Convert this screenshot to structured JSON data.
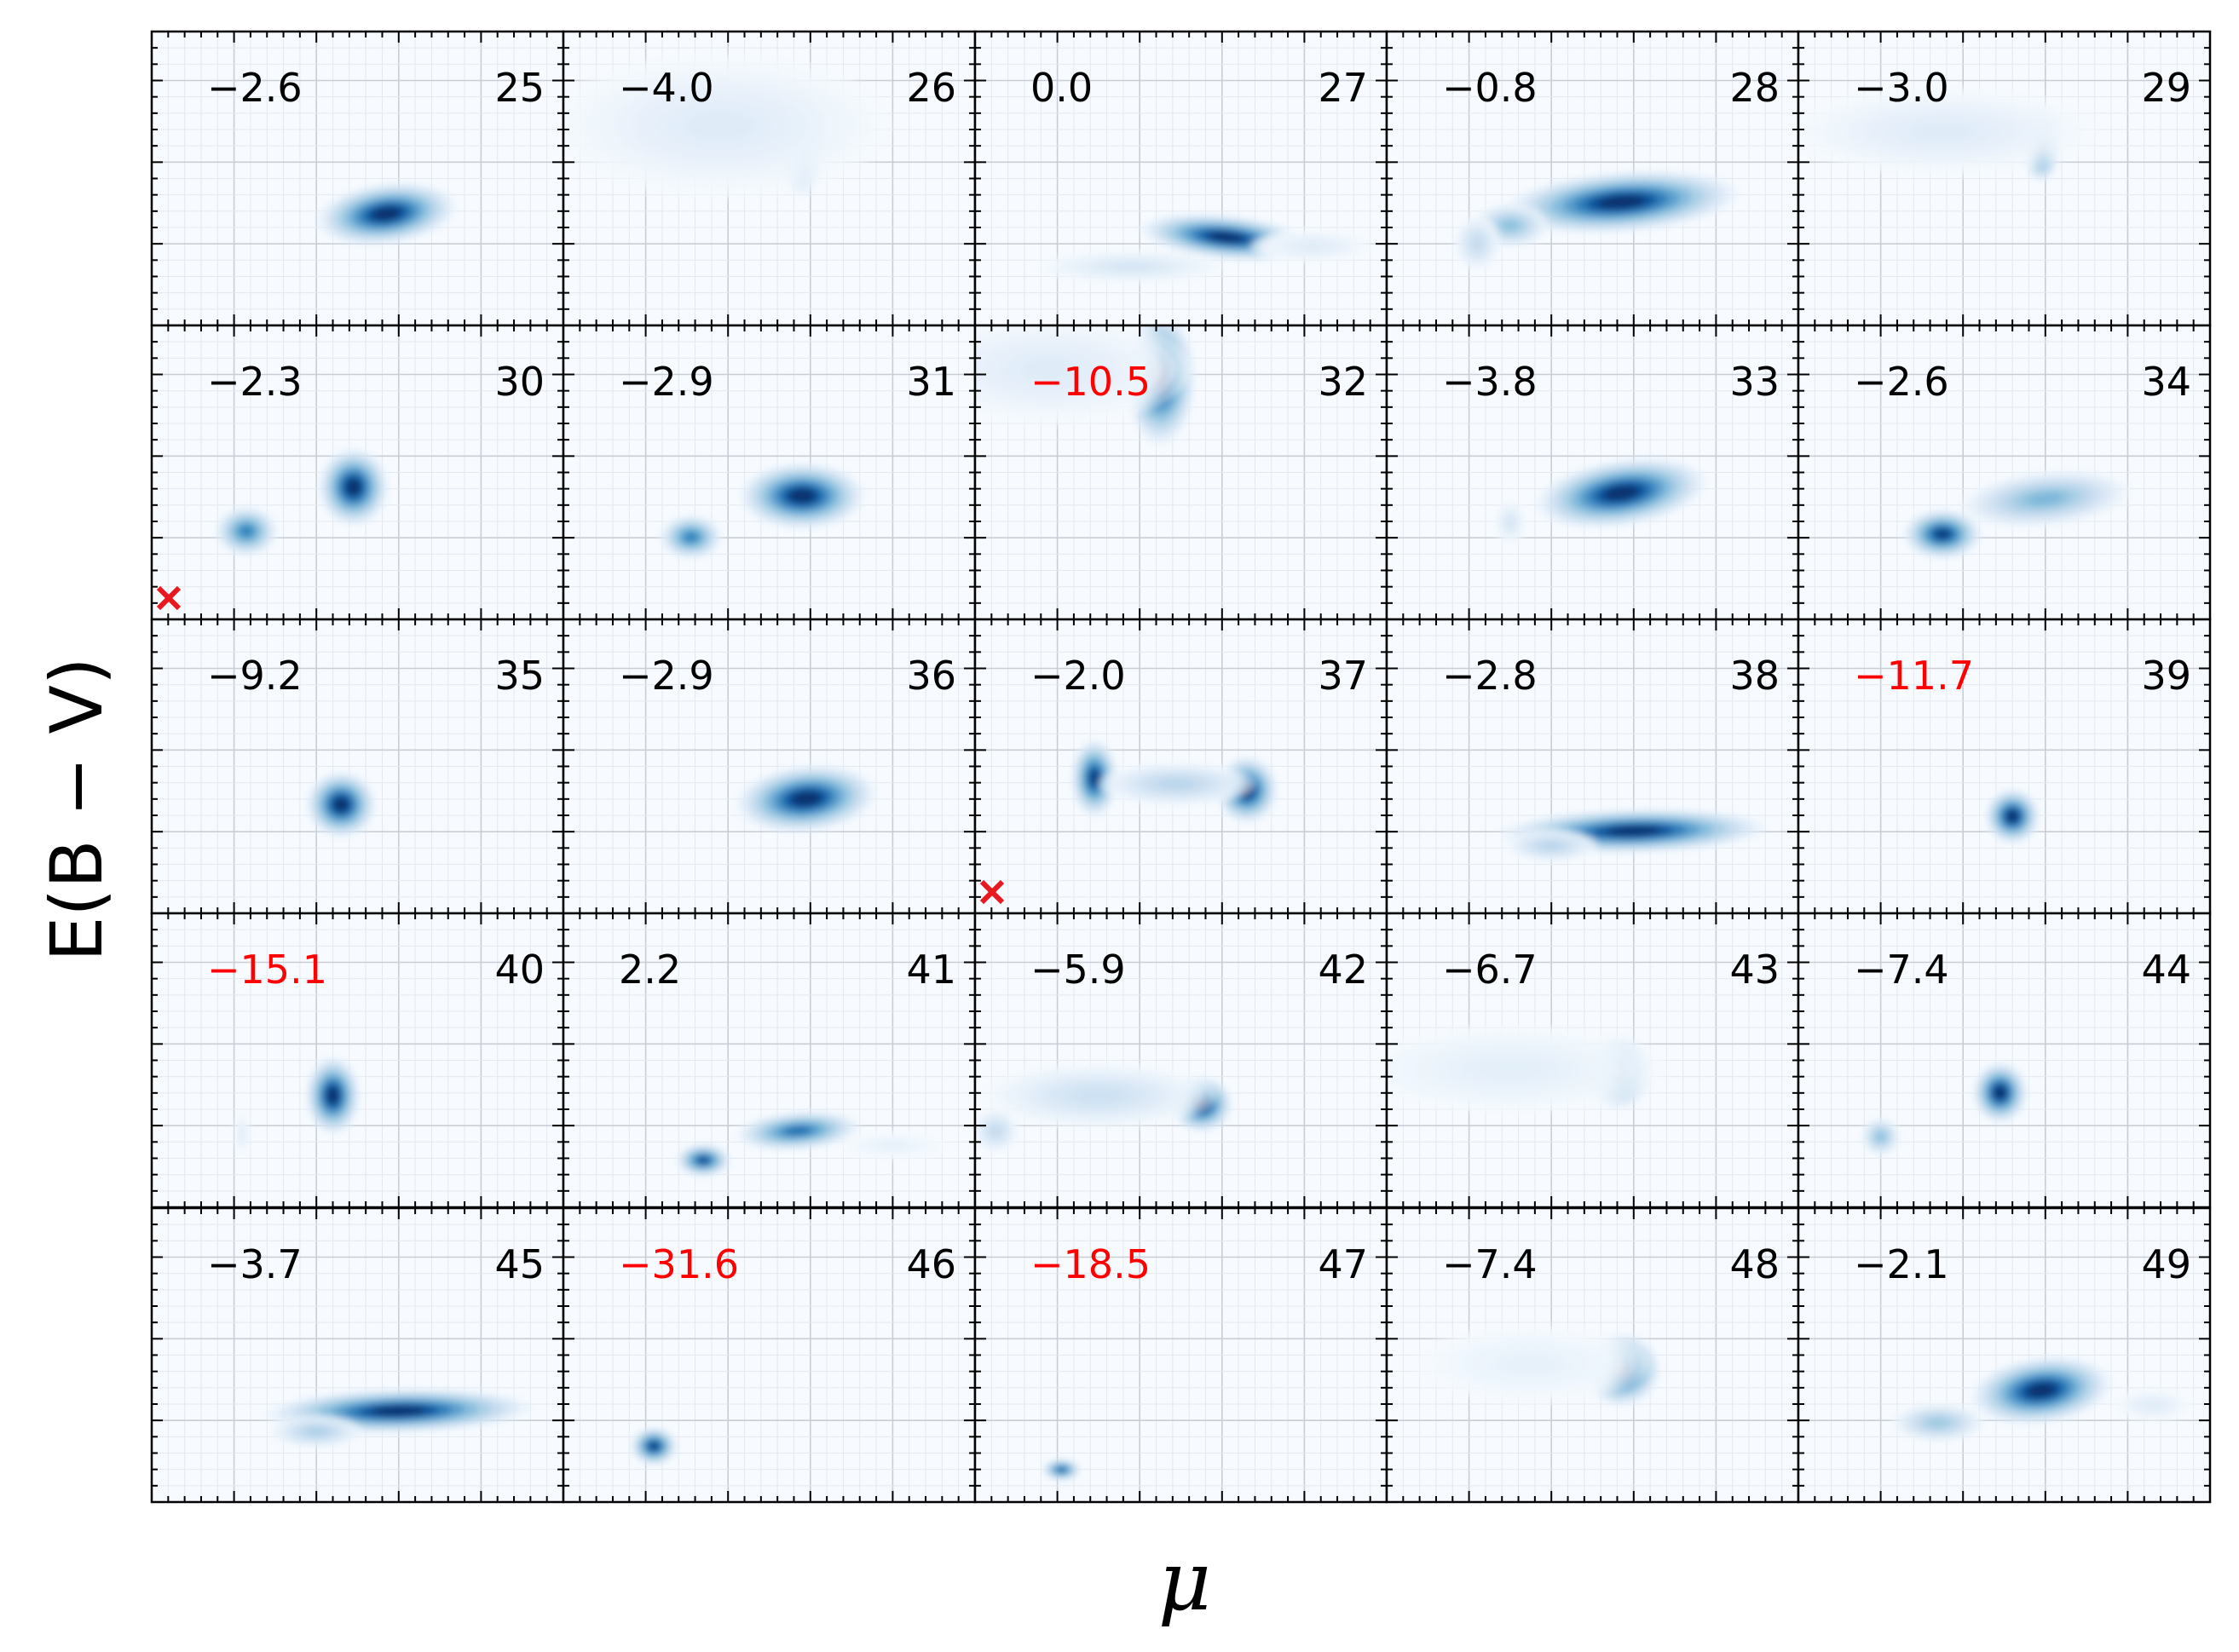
{
  "figure": {
    "xlabel": "μ",
    "ylabel": "E(B − V)",
    "grid": true,
    "colormap": "Blues",
    "marker_color": "#e8181e",
    "warning_color": "#ff0000",
    "text_color": "#000000"
  },
  "chart_data": {
    "type": "heatmap",
    "xlabel": "μ",
    "ylabel": "E(B − V)",
    "grid": true,
    "panels": [
      {
        "id": "25",
        "value": "−2.6",
        "warn": false,
        "marker": false,
        "blobs": [
          {
            "x": 0.57,
            "y": 0.38,
            "sx": 0.09,
            "sy": 0.055,
            "w": 1,
            "tilt": -0.25
          }
        ]
      },
      {
        "id": "26",
        "value": "−4.0",
        "warn": false,
        "marker": false,
        "blobs": [
          {
            "x": 0.58,
            "y": 0.63,
            "sx": 0.03,
            "sy": 0.1,
            "w": 1
          },
          {
            "x": 0.38,
            "y": 0.68,
            "sx": 0.22,
            "sy": 0.13,
            "w": 0.15
          }
        ]
      },
      {
        "id": "27",
        "value": "0.0",
        "warn": false,
        "marker": false,
        "blobs": [
          {
            "x": 0.61,
            "y": 0.3,
            "sx": 0.11,
            "sy": 0.04,
            "w": 1,
            "tilt": 0.2
          },
          {
            "x": 0.38,
            "y": 0.2,
            "sx": 0.12,
            "sy": 0.03,
            "w": 0.2
          },
          {
            "x": 0.82,
            "y": 0.27,
            "sx": 0.08,
            "sy": 0.03,
            "w": 0.15
          }
        ]
      },
      {
        "id": "28",
        "value": "−0.8",
        "warn": false,
        "marker": false,
        "blobs": [
          {
            "x": 0.57,
            "y": 0.42,
            "sx": 0.15,
            "sy": 0.055,
            "w": 1,
            "tilt": -0.15
          },
          {
            "x": 0.3,
            "y": 0.34,
            "sx": 0.05,
            "sy": 0.04,
            "w": 0.5
          },
          {
            "x": 0.22,
            "y": 0.28,
            "sx": 0.03,
            "sy": 0.05,
            "w": 0.3
          }
        ]
      },
      {
        "id": "29",
        "value": "−3.0",
        "warn": false,
        "marker": false,
        "blobs": [
          {
            "x": 0.59,
            "y": 0.62,
            "sx": 0.025,
            "sy": 0.07,
            "w": 1
          },
          {
            "x": 0.35,
            "y": 0.66,
            "sx": 0.2,
            "sy": 0.08,
            "w": 0.15
          }
        ]
      },
      {
        "id": "30",
        "value": "−2.3",
        "warn": false,
        "marker": true,
        "blobs": [
          {
            "x": 0.49,
            "y": 0.45,
            "sx": 0.045,
            "sy": 0.07,
            "w": 1
          },
          {
            "x": 0.23,
            "y": 0.3,
            "sx": 0.04,
            "sy": 0.045,
            "w": 0.75
          }
        ]
      },
      {
        "id": "31",
        "value": "−2.9",
        "warn": false,
        "marker": false,
        "blobs": [
          {
            "x": 0.58,
            "y": 0.42,
            "sx": 0.08,
            "sy": 0.06,
            "w": 1
          },
          {
            "x": 0.31,
            "y": 0.28,
            "sx": 0.04,
            "sy": 0.04,
            "w": 0.75
          }
        ]
      },
      {
        "id": "32",
        "value": "−10.5",
        "warn": true,
        "marker": false,
        "blobs": [
          {
            "x": 0.45,
            "y": 0.82,
            "sx": 0.045,
            "sy": 0.12,
            "w": 1
          },
          {
            "x": 0.18,
            "y": 0.85,
            "sx": 0.18,
            "sy": 0.1,
            "w": 0.15
          }
        ]
      },
      {
        "id": "33",
        "value": "−3.8",
        "warn": false,
        "marker": false,
        "blobs": [
          {
            "x": 0.57,
            "y": 0.43,
            "sx": 0.11,
            "sy": 0.06,
            "w": 1,
            "tilt": -0.3
          },
          {
            "x": 0.3,
            "y": 0.33,
            "sx": 0.02,
            "sy": 0.04,
            "w": 0.2
          }
        ]
      },
      {
        "id": "34",
        "value": "−2.6",
        "warn": false,
        "marker": false,
        "blobs": [
          {
            "x": 0.35,
            "y": 0.29,
            "sx": 0.05,
            "sy": 0.045,
            "w": 0.95
          },
          {
            "x": 0.6,
            "y": 0.41,
            "sx": 0.11,
            "sy": 0.05,
            "w": 0.55,
            "tilt": -0.2
          }
        ]
      },
      {
        "id": "35",
        "value": "−9.2",
        "warn": false,
        "marker": false,
        "blobs": [
          {
            "x": 0.46,
            "y": 0.37,
            "sx": 0.045,
            "sy": 0.06,
            "w": 1
          }
        ]
      },
      {
        "id": "36",
        "value": "−2.9",
        "warn": false,
        "marker": false,
        "blobs": [
          {
            "x": 0.59,
            "y": 0.39,
            "sx": 0.09,
            "sy": 0.06,
            "w": 1,
            "tilt": -0.2
          }
        ]
      },
      {
        "id": "37",
        "value": "−2.0",
        "warn": false,
        "marker": true,
        "blobs": [
          {
            "x": 0.29,
            "y": 0.46,
            "sx": 0.03,
            "sy": 0.07,
            "w": 0.95
          },
          {
            "x": 0.66,
            "y": 0.42,
            "sx": 0.04,
            "sy": 0.06,
            "w": 1
          },
          {
            "x": 0.49,
            "y": 0.44,
            "sx": 0.1,
            "sy": 0.04,
            "w": 0.35
          }
        ]
      },
      {
        "id": "38",
        "value": "−2.8",
        "warn": false,
        "marker": false,
        "blobs": [
          {
            "x": 0.6,
            "y": 0.28,
            "sx": 0.17,
            "sy": 0.04,
            "w": 1,
            "tilt": -0.05
          },
          {
            "x": 0.4,
            "y": 0.23,
            "sx": 0.06,
            "sy": 0.03,
            "w": 0.35
          }
        ]
      },
      {
        "id": "39",
        "value": "−11.7",
        "warn": true,
        "marker": false,
        "blobs": [
          {
            "x": 0.52,
            "y": 0.33,
            "sx": 0.035,
            "sy": 0.05,
            "w": 1
          }
        ]
      },
      {
        "id": "40",
        "value": "−15.1",
        "warn": true,
        "marker": false,
        "blobs": [
          {
            "x": 0.44,
            "y": 0.38,
            "sx": 0.035,
            "sy": 0.07,
            "w": 1
          },
          {
            "x": 0.22,
            "y": 0.25,
            "sx": 0.01,
            "sy": 0.04,
            "w": 0.15
          }
        ]
      },
      {
        "id": "41",
        "value": "2.2",
        "warn": false,
        "marker": false,
        "blobs": [
          {
            "x": 0.57,
            "y": 0.26,
            "sx": 0.08,
            "sy": 0.035,
            "w": 0.8,
            "tilt": -0.15
          },
          {
            "x": 0.34,
            "y": 0.16,
            "sx": 0.035,
            "sy": 0.03,
            "w": 0.9
          },
          {
            "x": 0.8,
            "y": 0.21,
            "sx": 0.07,
            "sy": 0.025,
            "w": 0.1
          }
        ]
      },
      {
        "id": "42",
        "value": "−5.9",
        "warn": false,
        "marker": false,
        "blobs": [
          {
            "x": 0.55,
            "y": 0.35,
            "sx": 0.04,
            "sy": 0.05,
            "w": 1
          },
          {
            "x": 0.3,
            "y": 0.38,
            "sx": 0.15,
            "sy": 0.06,
            "w": 0.25
          },
          {
            "x": 0.05,
            "y": 0.26,
            "sx": 0.03,
            "sy": 0.04,
            "w": 0.3
          }
        ]
      },
      {
        "id": "43",
        "value": "−6.7",
        "warn": false,
        "marker": false,
        "blobs": [
          {
            "x": 0.56,
            "y": 0.46,
            "sx": 0.045,
            "sy": 0.065,
            "w": 1
          },
          {
            "x": 0.3,
            "y": 0.47,
            "sx": 0.2,
            "sy": 0.08,
            "w": 0.12
          }
        ]
      },
      {
        "id": "44",
        "value": "−7.4",
        "warn": false,
        "marker": false,
        "blobs": [
          {
            "x": 0.49,
            "y": 0.39,
            "sx": 0.035,
            "sy": 0.055,
            "w": 1
          },
          {
            "x": 0.2,
            "y": 0.24,
            "sx": 0.025,
            "sy": 0.035,
            "w": 0.5
          }
        ]
      },
      {
        "id": "45",
        "value": "−3.7",
        "warn": false,
        "marker": false,
        "blobs": [
          {
            "x": 0.6,
            "y": 0.31,
            "sx": 0.17,
            "sy": 0.04,
            "w": 1,
            "tilt": -0.05
          },
          {
            "x": 0.4,
            "y": 0.24,
            "sx": 0.06,
            "sy": 0.03,
            "w": 0.4
          }
        ]
      },
      {
        "id": "46",
        "value": "−31.6",
        "warn": true,
        "marker": false,
        "blobs": [
          {
            "x": 0.22,
            "y": 0.19,
            "sx": 0.03,
            "sy": 0.035,
            "w": 0.95
          }
        ]
      },
      {
        "id": "47",
        "value": "−18.5",
        "warn": true,
        "marker": false,
        "blobs": [
          {
            "x": 0.21,
            "y": 0.11,
            "sx": 0.025,
            "sy": 0.02,
            "w": 0.85
          }
        ]
      },
      {
        "id": "48",
        "value": "−7.4",
        "warn": false,
        "marker": false,
        "blobs": [
          {
            "x": 0.57,
            "y": 0.45,
            "sx": 0.05,
            "sy": 0.065,
            "w": 1
          },
          {
            "x": 0.35,
            "y": 0.47,
            "sx": 0.15,
            "sy": 0.07,
            "w": 0.1
          }
        ]
      },
      {
        "id": "49",
        "value": "−2.1",
        "warn": false,
        "marker": false,
        "blobs": [
          {
            "x": 0.59,
            "y": 0.38,
            "sx": 0.09,
            "sy": 0.06,
            "w": 1,
            "tilt": -0.25
          },
          {
            "x": 0.34,
            "y": 0.27,
            "sx": 0.06,
            "sy": 0.035,
            "w": 0.45
          },
          {
            "x": 0.86,
            "y": 0.33,
            "sx": 0.05,
            "sy": 0.03,
            "w": 0.15
          }
        ]
      }
    ]
  }
}
